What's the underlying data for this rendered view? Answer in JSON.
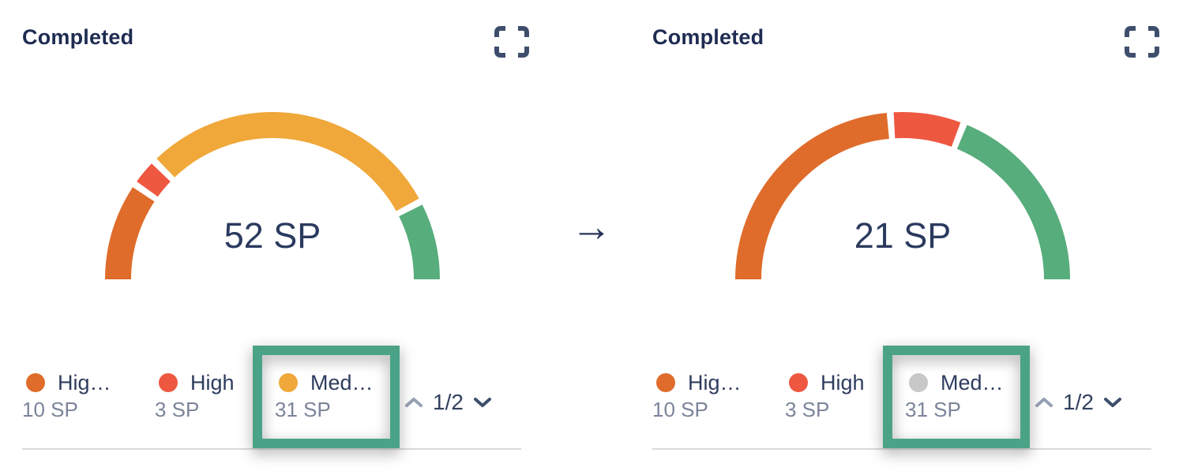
{
  "ui": {
    "arrow_glyph": "→",
    "colors": {
      "accent_annotation": "#4AA386",
      "excluded_dot": "#C8C8C8",
      "pagination_active": "#3E4E6C",
      "pagination_inactive": "#97A1B4",
      "title_text": "#1F2C52",
      "legend_label_text": "#2E3C5E",
      "legend_value_text": "#7B8499",
      "center_value_text": "#2B3A5E",
      "divider": "#DADADE"
    }
  },
  "chart_data": [
    {
      "type": "pie",
      "variant": "half-donut-gauge",
      "title": "Completed",
      "center_label": "52 SP",
      "legend_page": "1/2",
      "legend_position": "bottom",
      "series": [
        {
          "label": "Hig…",
          "value_sp": 10,
          "value_label": "10 SP",
          "color": "#DF6C2B",
          "excluded": false,
          "highlighted": false
        },
        {
          "label": "High",
          "value_sp": 3,
          "value_label": "3 SP",
          "color": "#EE5740",
          "excluded": false,
          "highlighted": false
        },
        {
          "label": "Med…",
          "value_sp": 31,
          "value_label": "31 SP",
          "color": "#F0A83A",
          "excluded": false,
          "highlighted": true
        },
        {
          "label": "",
          "value_sp": 8,
          "value_label": "",
          "color": "#57AD7C",
          "excluded": false,
          "highlighted": false
        }
      ]
    },
    {
      "type": "pie",
      "variant": "half-donut-gauge",
      "title": "Completed",
      "center_label": "21 SP",
      "legend_page": "1/2",
      "legend_position": "bottom",
      "series": [
        {
          "label": "Hig…",
          "value_sp": 10,
          "value_label": "10 SP",
          "color": "#DF6C2B",
          "excluded": false,
          "highlighted": false
        },
        {
          "label": "High",
          "value_sp": 3,
          "value_label": "3 SP",
          "color": "#EE5740",
          "excluded": false,
          "highlighted": false
        },
        {
          "label": "Med…",
          "value_sp": 31,
          "value_label": "31 SP",
          "color": "#F0A83A",
          "excluded": true,
          "highlighted": true
        },
        {
          "label": "",
          "value_sp": 8,
          "value_label": "",
          "color": "#57AD7C",
          "excluded": false,
          "highlighted": false
        }
      ]
    }
  ]
}
